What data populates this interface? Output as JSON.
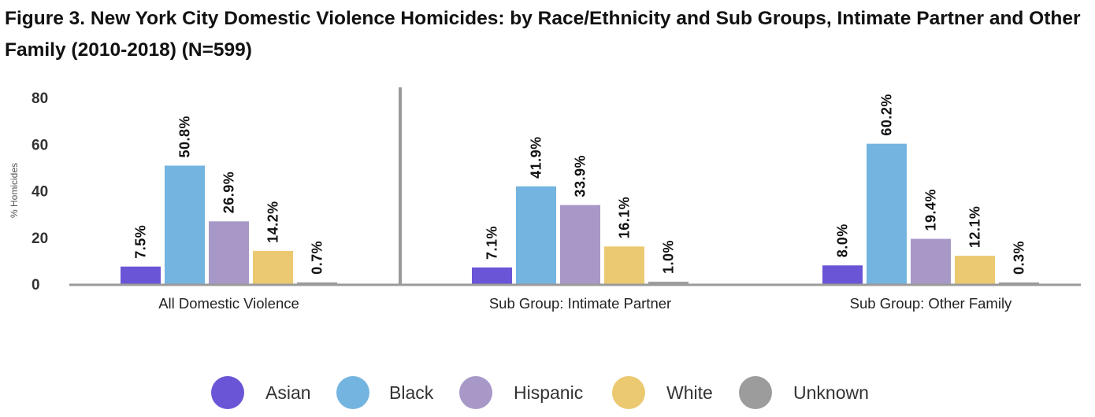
{
  "title": "Figure 3. New York City Domestic Violence Homicides: by Race/Ethnicity and Sub Groups, Intimate Partner and Other Family (2010-2018) (N=599)",
  "chart_data": {
    "type": "bar",
    "title": "Figure 3. New York City Domestic Violence Homicides: by Race/Ethnicity and Sub Groups, Intimate Partner and Other Family (2010-2018) (N=599)",
    "xlabel": "",
    "ylabel": "% Homicides",
    "ylim": [
      0,
      80
    ],
    "yticks": [
      0,
      20,
      40,
      60,
      80
    ],
    "grid": false,
    "legend_position": "bottom",
    "categories": [
      "All Domestic Violence",
      "Sub Group: Intimate Partner",
      "Sub Group: Other Family"
    ],
    "series": [
      {
        "name": "Asian",
        "color": "#6a55d6",
        "values": [
          7.5,
          7.1,
          8.0
        ],
        "labels": [
          "7.5%",
          "7.1%",
          "8.0%"
        ]
      },
      {
        "name": "Black",
        "color": "#74b4e0",
        "values": [
          50.8,
          41.9,
          60.2
        ],
        "labels": [
          "50.8%",
          "41.9%",
          "60.2%"
        ]
      },
      {
        "name": "Hispanic",
        "color": "#a898c8",
        "values": [
          26.9,
          33.9,
          19.4
        ],
        "labels": [
          "26.9%",
          "33.9%",
          "19.4%"
        ]
      },
      {
        "name": "White",
        "color": "#ebc970",
        "values": [
          14.2,
          16.1,
          12.1
        ],
        "labels": [
          "14.2%",
          "16.1%",
          "12.1%"
        ]
      },
      {
        "name": "Unknown",
        "color": "#9c9c9c",
        "values": [
          0.7,
          1.0,
          0.3
        ],
        "labels": [
          "0.7%",
          "1.0%",
          "0.3%"
        ]
      }
    ]
  }
}
